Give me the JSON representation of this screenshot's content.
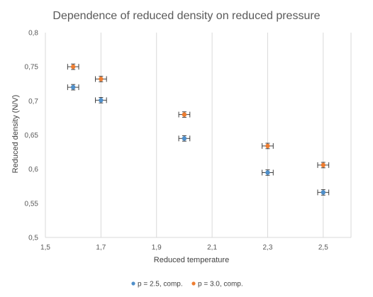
{
  "chart_data": {
    "type": "scatter",
    "title": "Dependence of reduced density on reduced pressure",
    "xlabel": "Reduced temperature",
    "ylabel": "Reduced density (N/V)",
    "xlim": [
      1.5,
      2.6
    ],
    "ylim": [
      0.5,
      0.8
    ],
    "x_ticks": [
      "1,5",
      "1,7",
      "1,9",
      "2,1",
      "2,3",
      "2,5"
    ],
    "x_tick_values": [
      1.5,
      1.7,
      1.9,
      2.1,
      2.3,
      2.5
    ],
    "y_ticks": [
      "0,5",
      "0,55",
      "0,6",
      "0,65",
      "0,7",
      "0,75",
      "0,8"
    ],
    "y_tick_values": [
      0.5,
      0.55,
      0.6,
      0.65,
      0.7,
      0.75,
      0.8
    ],
    "grid": "vertical",
    "legend_position": "bottom",
    "x_error": 0.02,
    "y_error": 0.004,
    "series": [
      {
        "name": "p = 2.5, comp.",
        "color": "#4f8fca",
        "points": [
          {
            "x": 1.6,
            "y": 0.72
          },
          {
            "x": 1.7,
            "y": 0.701
          },
          {
            "x": 2.0,
            "y": 0.645
          },
          {
            "x": 2.3,
            "y": 0.595
          },
          {
            "x": 2.5,
            "y": 0.566
          }
        ]
      },
      {
        "name": "p = 3.0, comp.",
        "color": "#ed7d31",
        "points": [
          {
            "x": 1.6,
            "y": 0.75
          },
          {
            "x": 1.7,
            "y": 0.732
          },
          {
            "x": 2.0,
            "y": 0.68
          },
          {
            "x": 2.3,
            "y": 0.634
          },
          {
            "x": 2.5,
            "y": 0.606
          }
        ]
      }
    ]
  }
}
